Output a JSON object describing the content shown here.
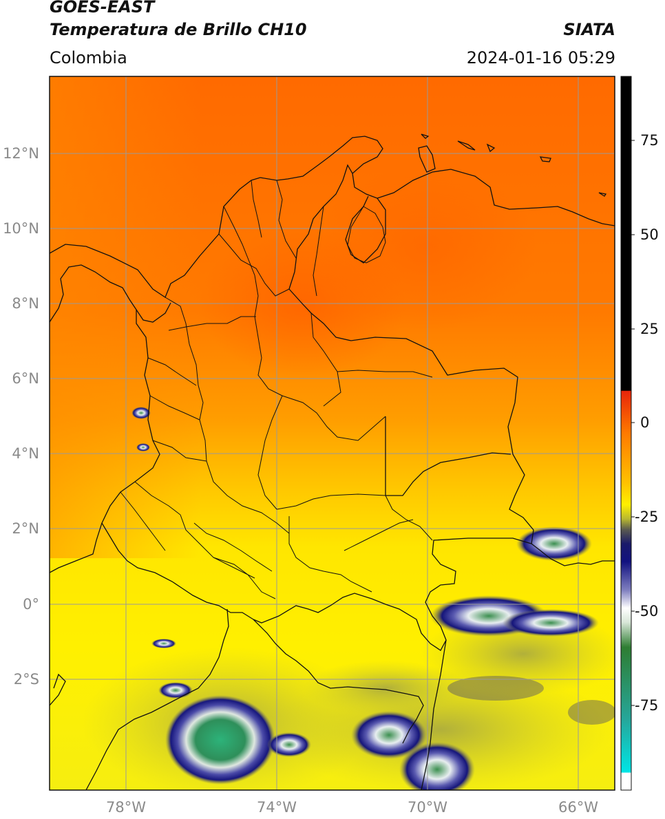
{
  "header": {
    "satellite": "GOES-EAST",
    "product": "Temperatura de Brillo CH10",
    "region": "Colombia",
    "agency": "SIATA",
    "datetime": "2024-01-16 05:29"
  },
  "map": {
    "lat_labels": [
      "12°N",
      "10°N",
      "8°N",
      "6°N",
      "4°N",
      "2°N",
      "0°",
      "2°S"
    ],
    "lon_labels": [
      "78°W",
      "74°W",
      "70°W",
      "66°W"
    ],
    "gridlines": true
  },
  "colorbar": {
    "ticks": [
      "75",
      "50",
      "25",
      "0",
      "-25",
      "-50",
      "-75"
    ],
    "stops": [
      {
        "value": 90,
        "color": "#000000"
      },
      {
        "value": 8,
        "color": "#000000"
      },
      {
        "value": 7.9,
        "color": "#e8250a"
      },
      {
        "value": 0,
        "color": "#ff7a00"
      },
      {
        "value": -10,
        "color": "#ffc200"
      },
      {
        "value": -17,
        "color": "#fff000"
      },
      {
        "value": -22,
        "color": "#9a9a3a"
      },
      {
        "value": -25,
        "color": "#2a2a5a"
      },
      {
        "value": -30,
        "color": "#10107a"
      },
      {
        "value": -40,
        "color": "#8080c0"
      },
      {
        "value": -50,
        "color": "#ffffff"
      },
      {
        "value": -60,
        "color": "#2e7d32"
      },
      {
        "value": -80,
        "color": "#26a69a"
      },
      {
        "value": -91,
        "color": "#00e5e5"
      },
      {
        "value": -91.1,
        "color": "#ffffff"
      },
      {
        "value": -95,
        "color": "#ffffff"
      }
    ]
  },
  "colors": {
    "warm": "#ff6a00",
    "mid": "#ff9d00",
    "cool": "#fff000",
    "border": "#111111",
    "grid": "#9a9a9a"
  }
}
